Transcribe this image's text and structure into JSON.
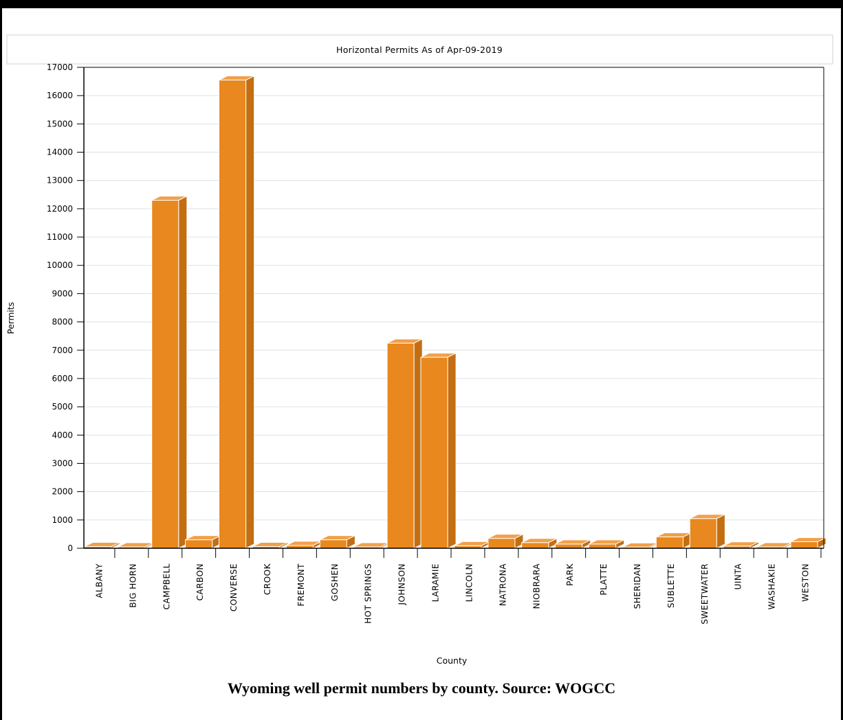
{
  "chart_data": {
    "type": "bar",
    "title": "Horizontal Permits As of Apr-09-2019",
    "xlabel": "County",
    "ylabel": "Permits",
    "ylim": [
      0,
      17000
    ],
    "yticks": [
      0,
      1000,
      2000,
      3000,
      4000,
      5000,
      6000,
      7000,
      8000,
      9000,
      10000,
      11000,
      12000,
      13000,
      14000,
      15000,
      16000,
      17000
    ],
    "grid": true,
    "bar_color": "#e8881f",
    "categories": [
      "ALBANY",
      "BIG HORN",
      "CAMPBELL",
      "CARBON",
      "CONVERSE",
      "CROOK",
      "FREMONT",
      "GOSHEN",
      "HOT SPRINGS",
      "JOHNSON",
      "LARAMIE",
      "LINCOLN",
      "NATRONA",
      "NIOBRARA",
      "PARK",
      "PLATTE",
      "SHERIDAN",
      "SUBLETTE",
      "SWEETWATER",
      "UINTA",
      "WASHAKIE",
      "WESTON"
    ],
    "values": [
      60,
      50,
      12300,
      300,
      16550,
      60,
      100,
      300,
      50,
      7250,
      6750,
      90,
      350,
      200,
      150,
      150,
      40,
      400,
      1050,
      80,
      50,
      230
    ]
  },
  "caption": "Wyoming well permit numbers by county. Source: WOGCC"
}
